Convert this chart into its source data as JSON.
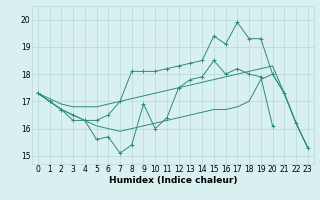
{
  "x": [
    0,
    1,
    2,
    3,
    4,
    5,
    6,
    7,
    8,
    9,
    10,
    11,
    12,
    13,
    14,
    15,
    16,
    17,
    18,
    19,
    20,
    21,
    22,
    23
  ],
  "line_jagged": [
    17.3,
    17.0,
    16.7,
    16.3,
    16.3,
    15.6,
    15.7,
    15.1,
    15.4,
    16.9,
    16.0,
    16.4,
    17.5,
    17.8,
    17.9,
    18.5,
    18.0,
    18.2,
    18.0,
    17.9,
    16.1,
    null,
    null,
    null
  ],
  "line_upper": [
    17.3,
    17.0,
    16.7,
    16.5,
    16.3,
    16.3,
    16.5,
    17.0,
    18.1,
    18.1,
    18.1,
    18.2,
    18.3,
    18.4,
    18.5,
    19.4,
    19.1,
    19.9,
    19.3,
    19.3,
    18.0,
    17.3,
    16.2,
    15.3
  ],
  "line_lower": [
    17.3,
    17.0,
    16.7,
    16.5,
    16.3,
    16.1,
    16.0,
    15.9,
    16.0,
    16.1,
    16.2,
    16.3,
    16.4,
    16.5,
    16.6,
    16.7,
    16.7,
    16.8,
    17.0,
    17.8,
    18.0,
    17.3,
    16.2,
    15.3
  ],
  "line_trend": [
    17.3,
    17.1,
    16.9,
    16.8,
    16.8,
    16.8,
    16.9,
    17.0,
    17.1,
    17.2,
    17.3,
    17.4,
    17.5,
    17.6,
    17.7,
    17.8,
    17.9,
    18.0,
    18.1,
    18.2,
    18.3,
    17.3,
    16.2,
    15.3
  ],
  "color": "#2d8b77",
  "bg_color": "#d8f0f0",
  "grid_color": "#b8d8d8",
  "xlabel": "Humidex (Indice chaleur)",
  "ylabel_ticks": [
    15,
    16,
    17,
    18,
    19,
    20
  ],
  "xlim": [
    -0.5,
    23.5
  ],
  "ylim": [
    14.7,
    20.5
  ]
}
